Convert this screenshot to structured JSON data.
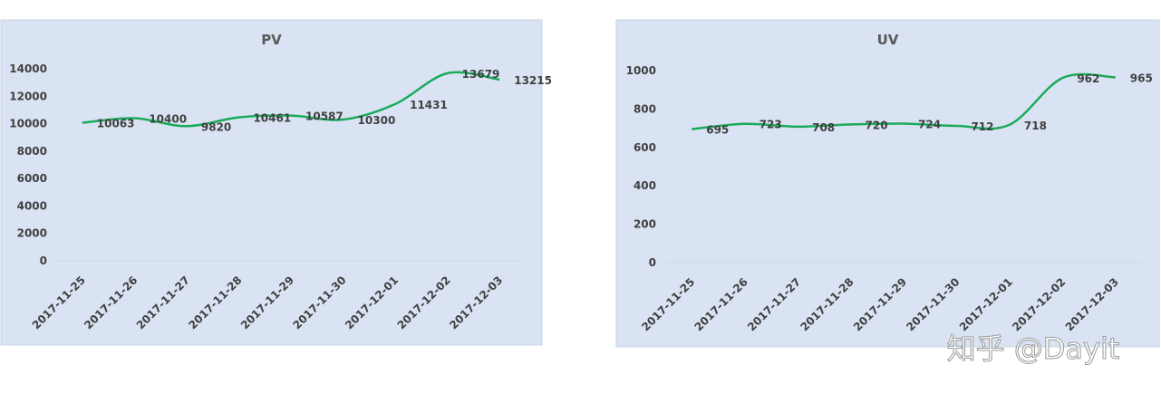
{
  "chart_data": [
    {
      "type": "line",
      "title": "PV",
      "categories": [
        "2017-11-25",
        "2017-11-26",
        "2017-11-27",
        "2017-11-28",
        "2017-11-29",
        "2017-11-30",
        "2017-12-01",
        "2017-12-02",
        "2017-12-03"
      ],
      "values": [
        10063,
        10400,
        9820,
        10461,
        10587,
        10300,
        11431,
        13679,
        13215
      ],
      "color": "#1aab5a",
      "ylim": [
        0,
        14000
      ],
      "yticks": [
        0,
        2000,
        4000,
        6000,
        8000,
        10000,
        12000,
        14000
      ],
      "smooth": true,
      "data_labels": true
    },
    {
      "type": "line",
      "title": "UV",
      "categories": [
        "2017-11-25",
        "2017-11-26",
        "2017-11-27",
        "2017-11-28",
        "2017-11-29",
        "2017-11-30",
        "2017-12-01",
        "2017-12-02",
        "2017-12-03"
      ],
      "values": [
        695,
        723,
        708,
        720,
        724,
        712,
        718,
        962,
        965
      ],
      "color": "#1aab5a",
      "ylim": [
        0,
        1000
      ],
      "yticks": [
        0,
        200,
        400,
        600,
        800,
        1000
      ],
      "smooth": true,
      "data_labels": true
    }
  ],
  "watermark": "知乎 @Dayit"
}
